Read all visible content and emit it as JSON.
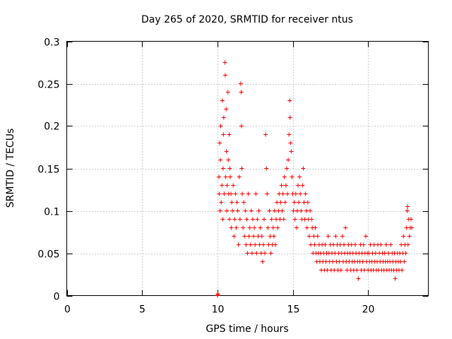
{
  "chart_data": {
    "type": "scatter",
    "title": "Day 265 of 2020, SRMTID for receiver ntus",
    "xlabel": "GPS time / hours",
    "ylabel": "SRMTID / TECUs",
    "xlim": [
      0,
      24
    ],
    "ylim": [
      0,
      0.3
    ],
    "xticks": [
      0,
      5,
      10,
      15,
      20
    ],
    "xtick_labels": [
      "0",
      "5",
      "10",
      "15",
      "20"
    ],
    "yticks": [
      0,
      0.05,
      0.1,
      0.15,
      0.2,
      0.25,
      0.3
    ],
    "ytick_labels": [
      "0",
      "0.05",
      "0.1",
      "0.15",
      "0.2",
      "0.25",
      "0.3"
    ],
    "grid": true,
    "marker": "+",
    "series": [
      {
        "name": "SRMTID",
        "color": "#ff0000",
        "points": [
          [
            10.0,
            0.0
          ],
          [
            10.02,
            0.001
          ],
          [
            10.04,
            0.002
          ],
          [
            10.1,
            0.14
          ],
          [
            10.12,
            0.12
          ],
          [
            10.15,
            0.18
          ],
          [
            10.18,
            0.1
          ],
          [
            10.2,
            0.16
          ],
          [
            10.22,
            0.2
          ],
          [
            10.25,
            0.11
          ],
          [
            10.3,
            0.13
          ],
          [
            10.33,
            0.23
          ],
          [
            10.35,
            0.09
          ],
          [
            10.38,
            0.15
          ],
          [
            10.4,
            0.19
          ],
          [
            10.42,
            0.21
          ],
          [
            10.45,
            0.12
          ],
          [
            10.5,
            0.275
          ],
          [
            10.52,
            0.26
          ],
          [
            10.55,
            0.14
          ],
          [
            10.58,
            0.22
          ],
          [
            10.6,
            0.17
          ],
          [
            10.62,
            0.1
          ],
          [
            10.65,
            0.13
          ],
          [
            10.7,
            0.24
          ],
          [
            10.72,
            0.16
          ],
          [
            10.75,
            0.12
          ],
          [
            10.78,
            0.19
          ],
          [
            10.8,
            0.09
          ],
          [
            10.82,
            0.15
          ],
          [
            10.85,
            0.14
          ],
          [
            10.9,
            0.12
          ],
          [
            10.92,
            0.08
          ],
          [
            10.95,
            0.11
          ],
          [
            11.0,
            0.1
          ],
          [
            11.05,
            0.13
          ],
          [
            11.1,
            0.07
          ],
          [
            11.15,
            0.09
          ],
          [
            11.2,
            0.12
          ],
          [
            11.25,
            0.08
          ],
          [
            11.3,
            0.11
          ],
          [
            11.35,
            0.1
          ],
          [
            11.4,
            0.06
          ],
          [
            11.45,
            0.14
          ],
          [
            11.5,
            0.09
          ],
          [
            11.55,
            0.25
          ],
          [
            11.58,
            0.24
          ],
          [
            11.6,
            0.2
          ],
          [
            11.62,
            0.15
          ],
          [
            11.65,
            0.12
          ],
          [
            11.7,
            0.08
          ],
          [
            11.75,
            0.11
          ],
          [
            11.8,
            0.07
          ],
          [
            11.85,
            0.1
          ],
          [
            11.9,
            0.06
          ],
          [
            11.95,
            0.09
          ],
          [
            12.0,
            0.05
          ],
          [
            12.05,
            0.12
          ],
          [
            12.1,
            0.07
          ],
          [
            12.15,
            0.08
          ],
          [
            12.2,
            0.06
          ],
          [
            12.25,
            0.1
          ],
          [
            12.3,
            0.05
          ],
          [
            12.35,
            0.09
          ],
          [
            12.4,
            0.07
          ],
          [
            12.45,
            0.08
          ],
          [
            12.5,
            0.06
          ],
          [
            12.55,
            0.12
          ],
          [
            12.6,
            0.05
          ],
          [
            12.65,
            0.09
          ],
          [
            12.7,
            0.07
          ],
          [
            12.75,
            0.1
          ],
          [
            12.8,
            0.06
          ],
          [
            12.85,
            0.08
          ],
          [
            12.9,
            0.05
          ],
          [
            12.95,
            0.07
          ],
          [
            13.0,
            0.04
          ],
          [
            13.05,
            0.06
          ],
          [
            13.1,
            0.09
          ],
          [
            13.15,
            0.05
          ],
          [
            13.2,
            0.19
          ],
          [
            13.25,
            0.15
          ],
          [
            13.3,
            0.12
          ],
          [
            13.35,
            0.08
          ],
          [
            13.4,
            0.06
          ],
          [
            13.45,
            0.1
          ],
          [
            13.5,
            0.07
          ],
          [
            13.55,
            0.05
          ],
          [
            13.6,
            0.09
          ],
          [
            13.65,
            0.06
          ],
          [
            13.7,
            0.08
          ],
          [
            13.75,
            0.07
          ],
          [
            13.8,
            0.1
          ],
          [
            13.85,
            0.06
          ],
          [
            13.9,
            0.09
          ],
          [
            13.95,
            0.11
          ],
          [
            14.0,
            0.08
          ],
          [
            14.05,
            0.1
          ],
          [
            14.1,
            0.12
          ],
          [
            14.15,
            0.09
          ],
          [
            14.2,
            0.11
          ],
          [
            14.25,
            0.13
          ],
          [
            14.3,
            0.1
          ],
          [
            14.35,
            0.12
          ],
          [
            14.4,
            0.09
          ],
          [
            14.45,
            0.14
          ],
          [
            14.5,
            0.11
          ],
          [
            14.55,
            0.13
          ],
          [
            14.6,
            0.15
          ],
          [
            14.65,
            0.12
          ],
          [
            14.7,
            0.16
          ],
          [
            14.75,
            0.19
          ],
          [
            14.8,
            0.23
          ],
          [
            14.82,
            0.21
          ],
          [
            14.85,
            0.18
          ],
          [
            14.9,
            0.17
          ],
          [
            14.95,
            0.14
          ],
          [
            15.0,
            0.12
          ],
          [
            15.05,
            0.1
          ],
          [
            15.1,
            0.11
          ],
          [
            15.15,
            0.09
          ],
          [
            15.2,
            0.12
          ],
          [
            15.25,
            0.08
          ],
          [
            15.3,
            0.1
          ],
          [
            15.35,
            0.13
          ],
          [
            15.4,
            0.11
          ],
          [
            15.45,
            0.14
          ],
          [
            15.5,
            0.12
          ],
          [
            15.55,
            0.1
          ],
          [
            15.6,
            0.09
          ],
          [
            15.65,
            0.13
          ],
          [
            15.7,
            0.15
          ],
          [
            15.75,
            0.11
          ],
          [
            15.8,
            0.09
          ],
          [
            15.85,
            0.12
          ],
          [
            15.9,
            0.1
          ],
          [
            15.95,
            0.08
          ],
          [
            16.0,
            0.11
          ],
          [
            16.05,
            0.09
          ],
          [
            16.1,
            0.07
          ],
          [
            16.15,
            0.1
          ],
          [
            16.2,
            0.06
          ],
          [
            16.25,
            0.09
          ],
          [
            16.3,
            0.08
          ],
          [
            16.35,
            0.05
          ],
          [
            16.4,
            0.07
          ],
          [
            16.45,
            0.06
          ],
          [
            16.5,
            0.08
          ],
          [
            16.55,
            0.05
          ],
          [
            16.6,
            0.04
          ],
          [
            16.65,
            0.07
          ],
          [
            16.7,
            0.05
          ],
          [
            16.75,
            0.06
          ],
          [
            16.8,
            0.04
          ],
          [
            16.85,
            0.05
          ],
          [
            16.9,
            0.03
          ],
          [
            16.95,
            0.06
          ],
          [
            17.0,
            0.04
          ],
          [
            17.05,
            0.05
          ],
          [
            17.1,
            0.03
          ],
          [
            17.15,
            0.06
          ],
          [
            17.2,
            0.04
          ],
          [
            17.25,
            0.05
          ],
          [
            17.3,
            0.03
          ],
          [
            17.35,
            0.07
          ],
          [
            17.4,
            0.05
          ],
          [
            17.45,
            0.04
          ],
          [
            17.5,
            0.06
          ],
          [
            17.55,
            0.03
          ],
          [
            17.6,
            0.05
          ],
          [
            17.65,
            0.04
          ],
          [
            17.7,
            0.06
          ],
          [
            17.75,
            0.03
          ],
          [
            17.8,
            0.05
          ],
          [
            17.85,
            0.07
          ],
          [
            17.9,
            0.04
          ],
          [
            17.95,
            0.06
          ],
          [
            18.0,
            0.03
          ],
          [
            18.05,
            0.05
          ],
          [
            18.1,
            0.04
          ],
          [
            18.15,
            0.06
          ],
          [
            18.2,
            0.03
          ],
          [
            18.25,
            0.05
          ],
          [
            18.3,
            0.07
          ],
          [
            18.35,
            0.04
          ],
          [
            18.4,
            0.06
          ],
          [
            18.45,
            0.05
          ],
          [
            18.5,
            0.08
          ],
          [
            18.55,
            0.04
          ],
          [
            18.6,
            0.03
          ],
          [
            18.65,
            0.05
          ],
          [
            18.7,
            0.06
          ],
          [
            18.75,
            0.04
          ],
          [
            18.8,
            0.05
          ],
          [
            18.85,
            0.03
          ],
          [
            18.9,
            0.06
          ],
          [
            18.95,
            0.04
          ],
          [
            19.0,
            0.05
          ],
          [
            19.05,
            0.03
          ],
          [
            19.1,
            0.04
          ],
          [
            19.15,
            0.06
          ],
          [
            19.2,
            0.05
          ],
          [
            19.25,
            0.03
          ],
          [
            19.3,
            0.04
          ],
          [
            19.35,
            0.02
          ],
          [
            19.4,
            0.05
          ],
          [
            19.45,
            0.04
          ],
          [
            19.5,
            0.06
          ],
          [
            19.55,
            0.03
          ],
          [
            19.6,
            0.05
          ],
          [
            19.65,
            0.04
          ],
          [
            19.7,
            0.06
          ],
          [
            19.75,
            0.03
          ],
          [
            19.8,
            0.05
          ],
          [
            19.85,
            0.07
          ],
          [
            19.9,
            0.04
          ],
          [
            19.95,
            0.05
          ],
          [
            20.0,
            0.03
          ],
          [
            20.05,
            0.05
          ],
          [
            20.1,
            0.04
          ],
          [
            20.15,
            0.06
          ],
          [
            20.2,
            0.03
          ],
          [
            20.25,
            0.04
          ],
          [
            20.3,
            0.05
          ],
          [
            20.35,
            0.03
          ],
          [
            20.4,
            0.06
          ],
          [
            20.45,
            0.04
          ],
          [
            20.5,
            0.05
          ],
          [
            20.55,
            0.03
          ],
          [
            20.6,
            0.04
          ],
          [
            20.65,
            0.06
          ],
          [
            20.7,
            0.03
          ],
          [
            20.75,
            0.05
          ],
          [
            20.8,
            0.04
          ],
          [
            20.85,
            0.06
          ],
          [
            20.9,
            0.03
          ],
          [
            20.95,
            0.05
          ],
          [
            21.0,
            0.04
          ],
          [
            21.05,
            0.03
          ],
          [
            21.1,
            0.05
          ],
          [
            21.15,
            0.04
          ],
          [
            21.2,
            0.06
          ],
          [
            21.25,
            0.03
          ],
          [
            21.3,
            0.04
          ],
          [
            21.35,
            0.05
          ],
          [
            21.4,
            0.03
          ],
          [
            21.45,
            0.04
          ],
          [
            21.5,
            0.06
          ],
          [
            21.55,
            0.03
          ],
          [
            21.6,
            0.05
          ],
          [
            21.65,
            0.04
          ],
          [
            21.7,
            0.03
          ],
          [
            21.75,
            0.05
          ],
          [
            21.8,
            0.02
          ],
          [
            21.85,
            0.04
          ],
          [
            21.9,
            0.03
          ],
          [
            21.95,
            0.05
          ],
          [
            22.0,
            0.04
          ],
          [
            22.05,
            0.03
          ],
          [
            22.1,
            0.05
          ],
          [
            22.15,
            0.04
          ],
          [
            22.2,
            0.06
          ],
          [
            22.25,
            0.03
          ],
          [
            22.3,
            0.05
          ],
          [
            22.35,
            0.07
          ],
          [
            22.4,
            0.04
          ],
          [
            22.45,
            0.06
          ],
          [
            22.5,
            0.05
          ],
          [
            22.55,
            0.08
          ],
          [
            22.6,
            0.1
          ],
          [
            22.62,
            0.105
          ],
          [
            22.65,
            0.06
          ],
          [
            22.7,
            0.09
          ],
          [
            22.75,
            0.07
          ],
          [
            22.8,
            0.08
          ],
          [
            22.85,
            0.09
          ],
          [
            22.9,
            0.08
          ]
        ]
      }
    ]
  }
}
